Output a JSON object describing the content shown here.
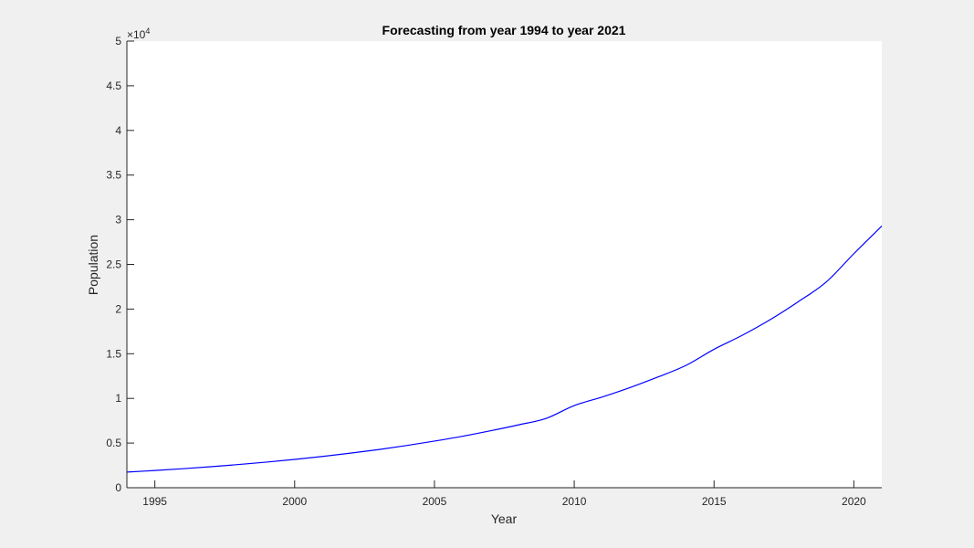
{
  "chart_data": {
    "type": "line",
    "title": "Forecasting from year 1994 to year 2021",
    "xlabel": "Year",
    "ylabel": "Population",
    "xlim": [
      1994,
      2021
    ],
    "ylim": [
      0,
      50000
    ],
    "y_exponent_label": "×10",
    "y_exponent_power": "4",
    "x_ticks": [
      1995,
      2000,
      2005,
      2010,
      2015,
      2020
    ],
    "x_tick_labels": [
      "1995",
      "2000",
      "2005",
      "2010",
      "2015",
      "2020"
    ],
    "y_ticks": [
      0,
      5000,
      10000,
      15000,
      20000,
      25000,
      30000,
      35000,
      40000,
      45000,
      50000
    ],
    "y_tick_labels": [
      "0",
      "0.5",
      "1",
      "1.5",
      "2",
      "2.5",
      "3",
      "3.5",
      "4",
      "4.5",
      "5"
    ],
    "grid": false,
    "series": [
      {
        "color": "#0000ff",
        "x": [
          1994,
          1995,
          1996,
          1997,
          1998,
          1999,
          2000,
          2001,
          2002,
          2003,
          2004,
          2005,
          2006,
          2007,
          2008,
          2009,
          2010,
          2011,
          2012,
          2013,
          2014,
          2015,
          2016,
          2017,
          2018,
          2019,
          2020,
          2021
        ],
        "y": [
          1750,
          1930,
          2130,
          2350,
          2600,
          2870,
          3170,
          3500,
          3870,
          4270,
          4720,
          5220,
          5760,
          6370,
          7030,
          7770,
          9200,
          10160,
          11220,
          12400,
          13700,
          15500,
          17050,
          18800,
          20800,
          23000,
          26200,
          29300
        ]
      }
    ]
  }
}
